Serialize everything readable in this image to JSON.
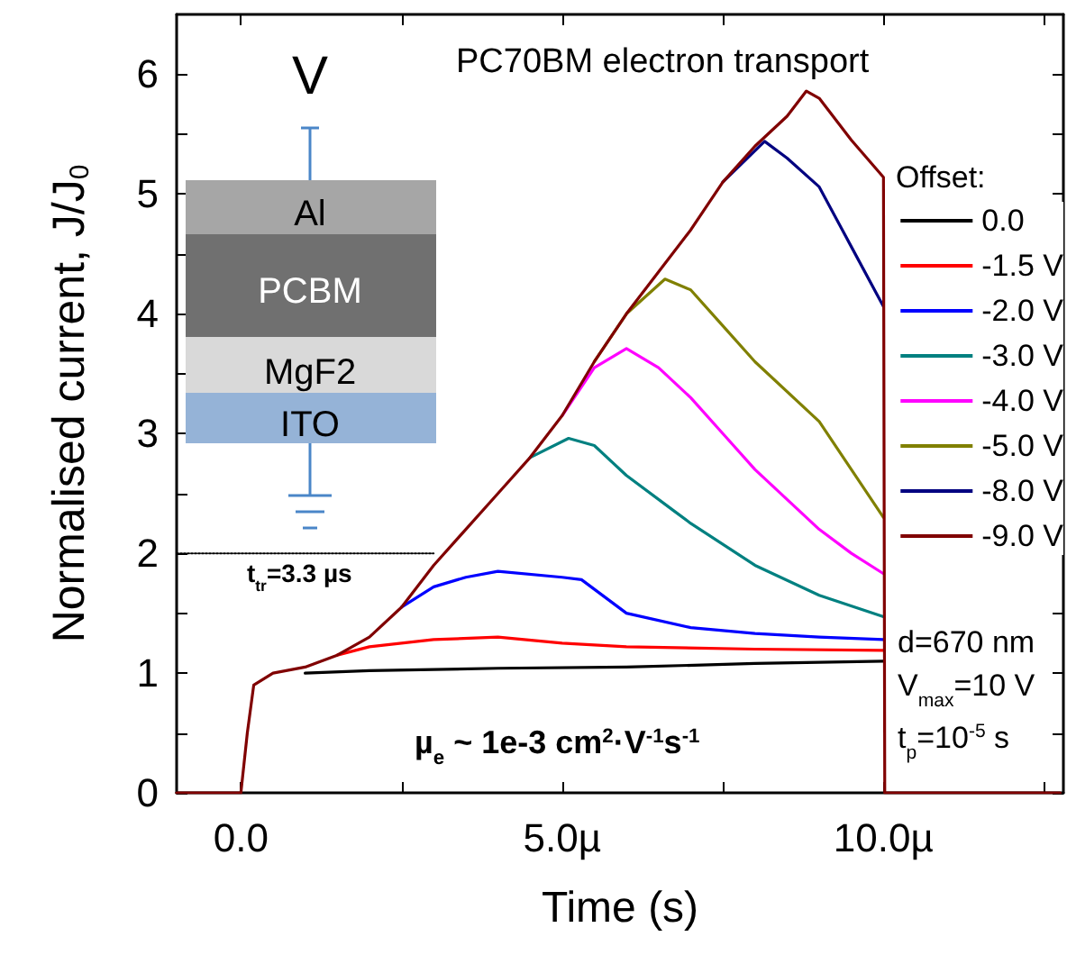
{
  "chart_data": {
    "type": "line",
    "title": "PC70BM electron transport",
    "xlabel": "Time (s)",
    "ylabel": "Normalised current, J/J$_{0}$",
    "legend_title": "Offset:",
    "legend": "right",
    "marker": "none",
    "line_style": "solid",
    "annotations": [
      "V",
      "Al",
      "PCBM",
      "MgF2",
      "ITO",
      "t$_{tr}$=3.3 µs",
      "µ$_{e}$ ~ 1e-3 cm$^{2}$·V$^{-1}$s$^{-1}$",
      "d=670 nm",
      "V$_{max}$=10 V",
      "t$_{p}$=10$^{-5}$ s"
    ],
    "xlim": [
      -1,
      12.8
    ],
    "ylim": [
      0,
      6.5
    ],
    "xticks": [
      {
        "value": 0,
        "label": "0.0"
      },
      {
        "value": 2.5,
        "label": null
      },
      {
        "value": 5,
        "label": "5.0µ"
      },
      {
        "value": 7.5,
        "label": null
      },
      {
        "value": 10,
        "label": "10.0µ"
      },
      {
        "value": 12.5,
        "label": null
      }
    ],
    "yticks": [
      0,
      {
        "value": 0.5,
        "label": null
      },
      1,
      {
        "value": 1.5,
        "label": null
      },
      2,
      {
        "value": 2.5,
        "label": null
      },
      3,
      {
        "value": 3.5,
        "label": null
      },
      4,
      {
        "value": 4.5,
        "label": null
      },
      5,
      {
        "value": 5.5,
        "label": null
      },
      6
    ],
    "series": [
      {
        "name": "0.0",
        "color": "#000000",
        "x": [
          1,
          2,
          4,
          6,
          8,
          10
        ],
        "values": [
          1.0,
          1.02,
          1.04,
          1.05,
          1.08,
          1.1
        ]
      },
      {
        "name": "-1.5 V",
        "color": "#ff0000",
        "x": [
          1.5,
          2,
          3,
          4,
          5,
          6,
          8,
          10
        ],
        "values": [
          1.15,
          1.22,
          1.28,
          1.3,
          1.25,
          1.22,
          1.2,
          1.19
        ]
      },
      {
        "name": "-2.0 V",
        "color": "#0000ff",
        "x": [
          2.5,
          3,
          3.5,
          4,
          5,
          5.3,
          6,
          7,
          8,
          9,
          10
        ],
        "values": [
          1.55,
          1.72,
          1.8,
          1.85,
          1.8,
          1.78,
          1.5,
          1.38,
          1.33,
          1.3,
          1.28
        ]
      },
      {
        "name": "-3.0 V",
        "color": "#008080",
        "x": [
          4.5,
          5.1,
          5.5,
          6,
          6.75,
          7,
          8,
          9,
          10
        ],
        "values": [
          2.8,
          2.96,
          2.9,
          2.65,
          2.35,
          2.25,
          1.9,
          1.65,
          1.47
        ]
      },
      {
        "name": "-4.0 V",
        "color": "#ff00ff",
        "x": [
          5,
          5.5,
          6,
          6.5,
          7,
          7.5,
          8,
          9,
          9.5,
          10
        ],
        "values": [
          3.15,
          3.55,
          3.71,
          3.55,
          3.3,
          3.0,
          2.7,
          2.2,
          2.0,
          1.83
        ]
      },
      {
        "name": "-5.0 V",
        "color": "#808000",
        "x": [
          5.5,
          6,
          6.6,
          7,
          7.5,
          8,
          9,
          9.5,
          10
        ],
        "values": [
          3.6,
          4.0,
          4.29,
          4.2,
          3.9,
          3.6,
          3.1,
          2.7,
          2.3
        ]
      },
      {
        "name": "-8.0 V",
        "color": "#000080",
        "x": [
          7.5,
          8.15,
          8.5,
          9,
          9.5,
          10
        ],
        "values": [
          5.1,
          5.44,
          5.3,
          5.06,
          4.56,
          4.06
        ]
      },
      {
        "name": "-9.0 V",
        "color": "#800000",
        "x": [
          -1,
          0,
          0.1,
          0.2,
          0.5,
          1,
          1.5,
          2,
          2.5,
          3,
          3.5,
          4,
          4.5,
          5,
          5.5,
          6,
          6.5,
          7,
          7.5,
          8,
          8.5,
          8.8,
          9,
          9.5,
          10,
          10.02,
          12.75
        ],
        "values": [
          0,
          0,
          0.5,
          0.9,
          1.0,
          1.05,
          1.15,
          1.3,
          1.55,
          1.9,
          2.2,
          2.5,
          2.8,
          3.15,
          3.6,
          4.0,
          4.35,
          4.7,
          5.1,
          5.4,
          5.65,
          5.86,
          5.8,
          5.45,
          5.14,
          0,
          0
        ]
      },
      {
        "color": "#000000",
        "line_style": "dotted",
        "x": [
          -1,
          3
        ],
        "values": [
          2,
          2
        ]
      }
    ]
  }
}
